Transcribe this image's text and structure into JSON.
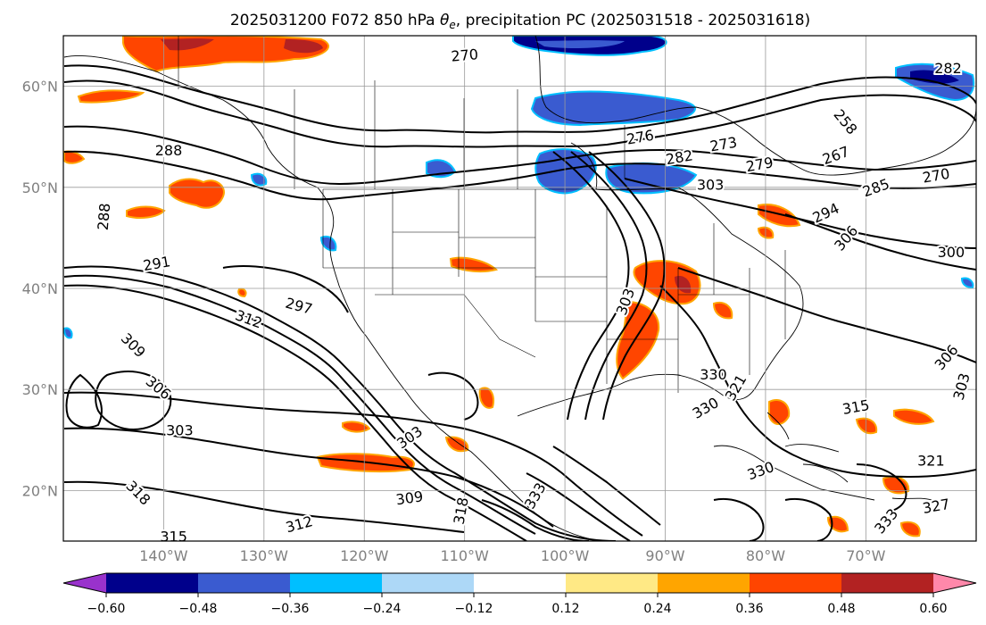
{
  "title": {
    "pre": "2025031200 F072 850 hPa ",
    "theta": "θ",
    "sub": "e",
    "post": ", precipitation PC (2025031518 - 2025031618)"
  },
  "map": {
    "lon_range": [
      -150,
      -59
    ],
    "lat_range": [
      15,
      65
    ],
    "lat_ticks": [
      {
        "value": 20,
        "label": "20°N"
      },
      {
        "value": 30,
        "label": "30°N"
      },
      {
        "value": 40,
        "label": "40°N"
      },
      {
        "value": 50,
        "label": "50°N"
      },
      {
        "value": 60,
        "label": "60°N"
      }
    ],
    "lon_ticks": [
      {
        "value": -140,
        "label": "140°W"
      },
      {
        "value": -130,
        "label": "130°W"
      },
      {
        "value": -120,
        "label": "120°W"
      },
      {
        "value": -110,
        "label": "110°W"
      },
      {
        "value": -100,
        "label": "100°W"
      },
      {
        "value": -90,
        "label": "90°W"
      },
      {
        "value": -80,
        "label": "80°W"
      },
      {
        "value": -70,
        "label": "70°W"
      }
    ],
    "gridlines": true
  },
  "colorbar": {
    "boundaries": [
      -0.6,
      -0.48,
      -0.36,
      -0.24,
      -0.12,
      0.12,
      0.24,
      0.36,
      0.48,
      0.6
    ],
    "labels": [
      "−0.60",
      "−0.48",
      "−0.36",
      "−0.24",
      "−0.12",
      "0.12",
      "0.24",
      "0.36",
      "0.48",
      "0.60"
    ],
    "colors": [
      "#9932cc",
      "#00008b",
      "#3a5bd0",
      "#00bfff",
      "#add8f7",
      "#ffffff",
      "#ffe985",
      "#ffa500",
      "#ff4500",
      "#b22222",
      "#ff88aa"
    ],
    "extend": "both"
  },
  "contour_labels": [
    {
      "text": "288",
      "lon": -139.5,
      "lat": 53.7,
      "rot": 0
    },
    {
      "text": "288",
      "lon": -146.0,
      "lat": 47.1,
      "rot": -85
    },
    {
      "text": "291",
      "lon": -140.7,
      "lat": 42.5,
      "rot": -10
    },
    {
      "text": "297",
      "lon": -126.5,
      "lat": 38.3,
      "rot": 15
    },
    {
      "text": "312",
      "lon": -131.5,
      "lat": 37.0,
      "rot": 20
    },
    {
      "text": "309",
      "lon": -143.0,
      "lat": 34.4,
      "rot": 45
    },
    {
      "text": "306",
      "lon": -140.5,
      "lat": 30.2,
      "rot": 40
    },
    {
      "text": "303",
      "lon": -138.4,
      "lat": 26.0,
      "rot": 0
    },
    {
      "text": "318",
      "lon": -142.5,
      "lat": 19.8,
      "rot": 45
    },
    {
      "text": "315",
      "lon": -139.0,
      "lat": 15.5,
      "rot": 0
    },
    {
      "text": "312",
      "lon": -126.5,
      "lat": 16.7,
      "rot": -15
    },
    {
      "text": "309",
      "lon": -115.5,
      "lat": 19.3,
      "rot": -8
    },
    {
      "text": "303",
      "lon": -115.5,
      "lat": 25.3,
      "rot": -35
    },
    {
      "text": "270",
      "lon": -110.0,
      "lat": 63.1,
      "rot": -5
    },
    {
      "text": "276",
      "lon": -92.5,
      "lat": 55.0,
      "rot": -10
    },
    {
      "text": "282",
      "lon": -88.6,
      "lat": 53.0,
      "rot": -10
    },
    {
      "text": "273",
      "lon": -84.2,
      "lat": 54.3,
      "rot": -10
    },
    {
      "text": "279",
      "lon": -80.6,
      "lat": 52.3,
      "rot": -10
    },
    {
      "text": "258",
      "lon": -72.0,
      "lat": 56.5,
      "rot": 50
    },
    {
      "text": "267",
      "lon": -73.0,
      "lat": 53.2,
      "rot": -20
    },
    {
      "text": "270",
      "lon": -63.0,
      "lat": 51.2,
      "rot": -10
    },
    {
      "text": "285",
      "lon": -69.0,
      "lat": 50.0,
      "rot": -20
    },
    {
      "text": "294",
      "lon": -74.0,
      "lat": 47.5,
      "rot": -25
    },
    {
      "text": "303",
      "lon": -85.5,
      "lat": 50.3,
      "rot": 0
    },
    {
      "text": "300",
      "lon": -61.5,
      "lat": 43.6,
      "rot": 0
    },
    {
      "text": "306",
      "lon": -72.0,
      "lat": 45.0,
      "rot": -50
    },
    {
      "text": "306",
      "lon": -62.0,
      "lat": 33.2,
      "rot": -50
    },
    {
      "text": "303",
      "lon": -60.5,
      "lat": 30.3,
      "rot": -75
    },
    {
      "text": "315",
      "lon": -71.0,
      "lat": 28.3,
      "rot": -10
    },
    {
      "text": "321",
      "lon": -63.5,
      "lat": 23.0,
      "rot": 0
    },
    {
      "text": "327",
      "lon": -63.0,
      "lat": 18.5,
      "rot": -10
    },
    {
      "text": "330",
      "lon": -86.0,
      "lat": 28.2,
      "rot": -30
    },
    {
      "text": "321",
      "lon": -83.0,
      "lat": 30.2,
      "rot": -60
    },
    {
      "text": "330",
      "lon": -85.2,
      "lat": 31.5,
      "rot": 0
    },
    {
      "text": "330",
      "lon": -80.5,
      "lat": 22.0,
      "rot": -20
    },
    {
      "text": "303",
      "lon": -94.0,
      "lat": 38.7,
      "rot": -70
    },
    {
      "text": "318",
      "lon": -110.4,
      "lat": 18.0,
      "rot": -80
    },
    {
      "text": "333",
      "lon": -103.0,
      "lat": 19.5,
      "rot": -60
    },
    {
      "text": "333",
      "lon": -68.0,
      "lat": 17.0,
      "rot": -50
    },
    {
      "text": "282",
      "lon": -61.8,
      "lat": 61.8,
      "rot": 0
    }
  ]
}
